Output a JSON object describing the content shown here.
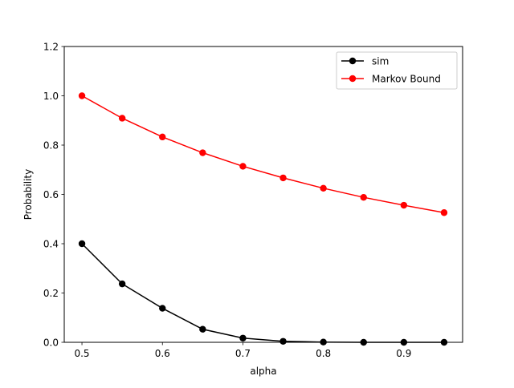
{
  "chart_data": {
    "type": "line",
    "title": "",
    "xlabel": "alpha",
    "ylabel": "Probability",
    "x": [
      0.5,
      0.55,
      0.6,
      0.65,
      0.7,
      0.75,
      0.8,
      0.85,
      0.9,
      0.95
    ],
    "xlim": [
      0.478,
      0.973
    ],
    "ylim": [
      0.0,
      1.2
    ],
    "xticks": [
      "0.5",
      "0.6",
      "0.7",
      "0.8",
      "0.9"
    ],
    "yticks": [
      "0.0",
      "0.2",
      "0.4",
      "0.6",
      "0.8",
      "1.0",
      "1.2"
    ],
    "grid": false,
    "legend_position": "top-right",
    "series": [
      {
        "name": "sim",
        "color": "#000000",
        "marker": "circle",
        "values": [
          0.4,
          0.237,
          0.138,
          0.053,
          0.017,
          0.004,
          0.001,
          0.0,
          0.0,
          0.0
        ]
      },
      {
        "name": "Markov Bound",
        "color": "#ff0000",
        "marker": "circle",
        "values": [
          1.0,
          0.909,
          0.833,
          0.769,
          0.714,
          0.667,
          0.625,
          0.588,
          0.556,
          0.526
        ]
      }
    ]
  }
}
